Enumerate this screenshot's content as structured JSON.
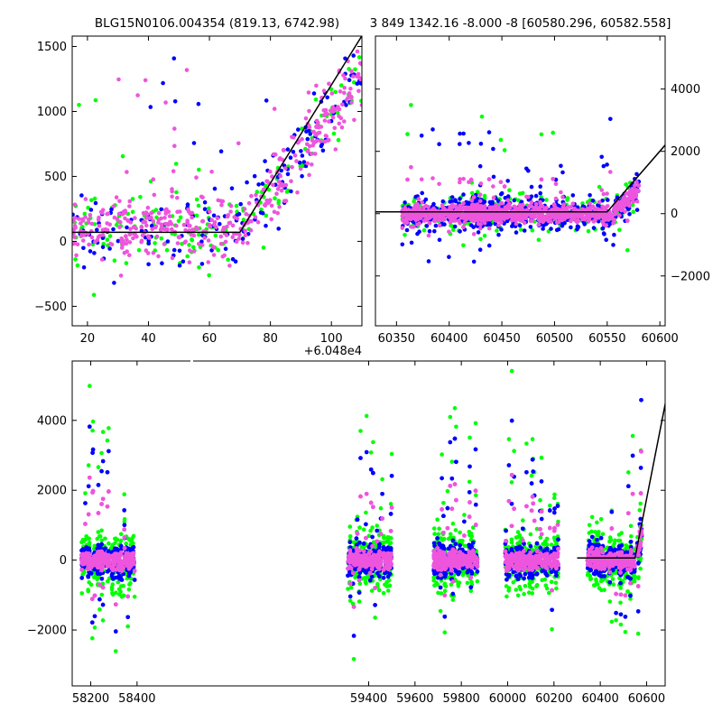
{
  "figure": {
    "colors": {
      "green": "#00ff00",
      "blue": "#0000ff",
      "pink": "#ee55dd",
      "model": "#000000"
    }
  },
  "chart_data": [
    {
      "type": "scatter",
      "title": "BLG15N0106.004354 (819.13, 6742.98)",
      "xlim": [
        15,
        110
      ],
      "ylim": [
        -650,
        1580
      ],
      "x_offset_label": "+6.048e4",
      "xticks": [
        20,
        40,
        60,
        80,
        100
      ],
      "yticks": [
        -500,
        0,
        500,
        1000,
        1500
      ],
      "ytick_side": "left",
      "series": [
        {
          "color": "green",
          "scatter": {
            "n": 170,
            "kind": "rise",
            "x0": 15,
            "x1": 110,
            "base": 80,
            "spread": 300,
            "break": 70,
            "slope": 30
          }
        },
        {
          "color": "blue",
          "scatter": {
            "n": 170,
            "kind": "rise",
            "x0": 15,
            "x1": 110,
            "base": 80,
            "spread": 320,
            "break": 70,
            "slope": 30
          }
        },
        {
          "color": "pink",
          "scatter": {
            "n": 420,
            "kind": "rise",
            "x0": 15,
            "x1": 110,
            "base": 100,
            "spread": 260,
            "break": 70,
            "slope": 30
          }
        }
      ],
      "model": {
        "x": [
          15,
          70,
          111
        ],
        "y": [
          70,
          70,
          1620
        ]
      }
    },
    {
      "type": "scatter",
      "title": "3 849 1342.16 -8.000 -8 [60580.296, 60582.558]",
      "xlim": [
        60330,
        60605
      ],
      "ylim": [
        -3600,
        5700
      ],
      "xticks": [
        60350,
        60400,
        60450,
        60500,
        60550,
        60600
      ],
      "yticks": [
        -2000,
        0,
        2000,
        4000
      ],
      "ytick_side": "right",
      "series": [
        {
          "color": "green",
          "scatter": {
            "n": 260,
            "kind": "band",
            "x0": 60355,
            "x1": 60580,
            "base": 0,
            "spread": 900,
            "tail": 3500
          }
        },
        {
          "color": "blue",
          "scatter": {
            "n": 700,
            "kind": "band",
            "x0": 60355,
            "x1": 60580,
            "base": 0,
            "spread": 700,
            "tail": 3500
          }
        },
        {
          "color": "pink",
          "scatter": {
            "n": 1500,
            "kind": "band",
            "x0": 60355,
            "x1": 60580,
            "base": 0,
            "spread": 380,
            "tail": 1500
          }
        }
      ],
      "model": {
        "x": [
          60330,
          60550,
          60605
        ],
        "y": [
          60,
          60,
          2200
        ]
      }
    },
    {
      "type": "scatter",
      "xlim": [
        58120,
        60680
      ],
      "ylim": [
        -3600,
        5700
      ],
      "xticks": [
        58200,
        58400,
        59400,
        59600,
        59800,
        60000,
        60200,
        60400,
        60600
      ],
      "yticks": [
        -2000,
        0,
        2000,
        4000
      ],
      "ytick_side": "left",
      "seasons": [
        [
          58160,
          58390
        ],
        [
          59310,
          59500
        ],
        [
          59680,
          59870
        ],
        [
          59990,
          60220
        ],
        [
          60345,
          60580
        ]
      ],
      "series": [
        {
          "color": "green",
          "scatter": {
            "n": 1200,
            "kind": "seasons",
            "base": 0,
            "spread": 1300,
            "tail": 5000
          }
        },
        {
          "color": "blue",
          "scatter": {
            "n": 2500,
            "kind": "seasons",
            "base": 0,
            "spread": 700,
            "tail": 4000
          }
        },
        {
          "color": "pink",
          "scatter": {
            "n": 5000,
            "kind": "seasons",
            "base": 0,
            "spread": 380,
            "tail": 2500
          }
        }
      ],
      "model": {
        "x": [
          60300,
          60550,
          60690
        ],
        "y": [
          60,
          60,
          4800
        ]
      }
    }
  ]
}
